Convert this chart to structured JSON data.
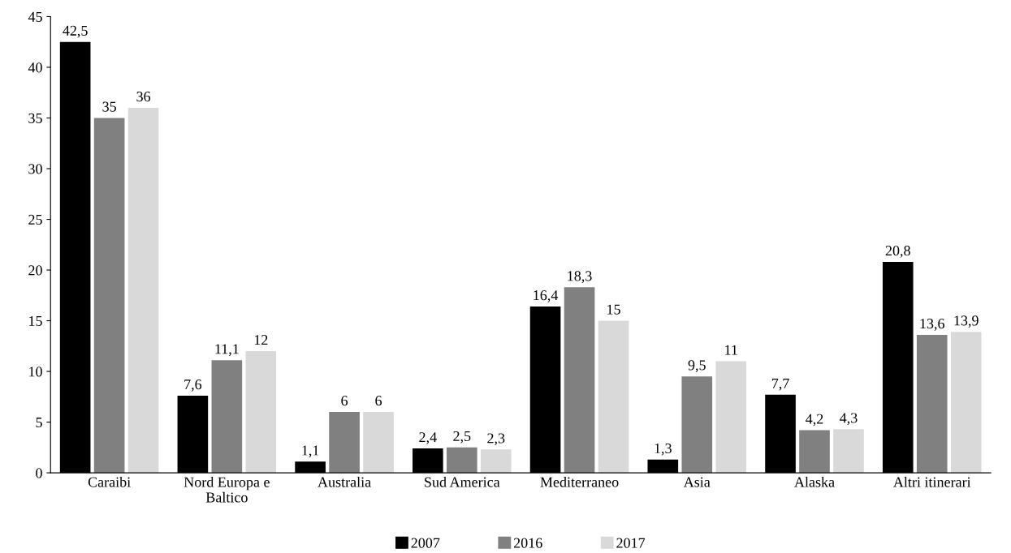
{
  "chart_data": {
    "type": "bar",
    "categories": [
      "Caraibi",
      "Nord Europa e\nBaltico",
      "Australia",
      "Sud America",
      "Mediterraneo",
      "Asia",
      "Alaska",
      "Altri itinerari"
    ],
    "series": [
      {
        "name": "2007",
        "color": "#000000",
        "values": [
          42.5,
          7.6,
          1.1,
          2.4,
          16.4,
          1.3,
          7.7,
          20.8
        ],
        "value_labels": [
          "42,5",
          "7,6",
          "1,1",
          "2,4",
          "16,4",
          "1,3",
          "7,7",
          "20,8"
        ]
      },
      {
        "name": "2016",
        "color": "#808080",
        "values": [
          35,
          11.1,
          6,
          2.5,
          18.3,
          9.5,
          4.2,
          13.6
        ],
        "value_labels": [
          "35",
          "11,1",
          "6",
          "2,5",
          "18,3",
          "9,5",
          "4,2",
          "13,6"
        ]
      },
      {
        "name": "2017",
        "color": "#d9d9d9",
        "values": [
          36,
          12,
          6,
          2.3,
          15,
          11,
          4.3,
          13.9
        ],
        "value_labels": [
          "36",
          "12",
          "6",
          "2,3",
          "15",
          "11",
          "4,3",
          "13,9"
        ]
      }
    ],
    "ylim": [
      0,
      45
    ],
    "yticks": [
      0,
      5,
      10,
      15,
      20,
      25,
      30,
      35,
      40,
      45
    ],
    "grid": false,
    "legend": "bottom"
  }
}
